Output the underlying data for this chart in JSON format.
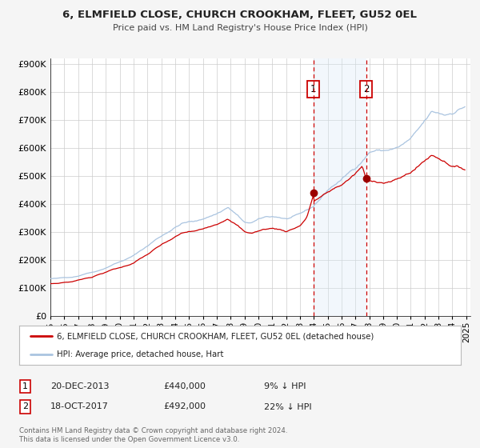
{
  "title": "6, ELMFIELD CLOSE, CHURCH CROOKHAM, FLEET, GU52 0EL",
  "subtitle": "Price paid vs. HM Land Registry's House Price Index (HPI)",
  "legend_entry1": "6, ELMFIELD CLOSE, CHURCH CROOKHAM, FLEET, GU52 0EL (detached house)",
  "legend_entry2": "HPI: Average price, detached house, Hart",
  "footer1": "Contains HM Land Registry data © Crown copyright and database right 2024.",
  "footer2": "This data is licensed under the Open Government Licence v3.0.",
  "annotation1_label": "1",
  "annotation1_date": "20-DEC-2013",
  "annotation1_price": "£440,000",
  "annotation1_hpi": "9% ↓ HPI",
  "annotation2_label": "2",
  "annotation2_date": "18-OCT-2017",
  "annotation2_price": "£492,000",
  "annotation2_hpi": "22% ↓ HPI",
  "sale1_year": 2013.96,
  "sale1_value": 440000,
  "sale2_year": 2017.79,
  "sale2_value": 492000,
  "hpi_color": "#aac4e0",
  "price_color": "#cc0000",
  "marker_color": "#9b0000",
  "shade_color": "#daeaf7",
  "vline_color": "#cc0000",
  "background_color": "#f5f5f5",
  "plot_bg_color": "#ffffff",
  "grid_color": "#cccccc",
  "ylim_min": 0,
  "ylim_max": 920000,
  "xlim_min": 1995.0,
  "xlim_max": 2025.3
}
